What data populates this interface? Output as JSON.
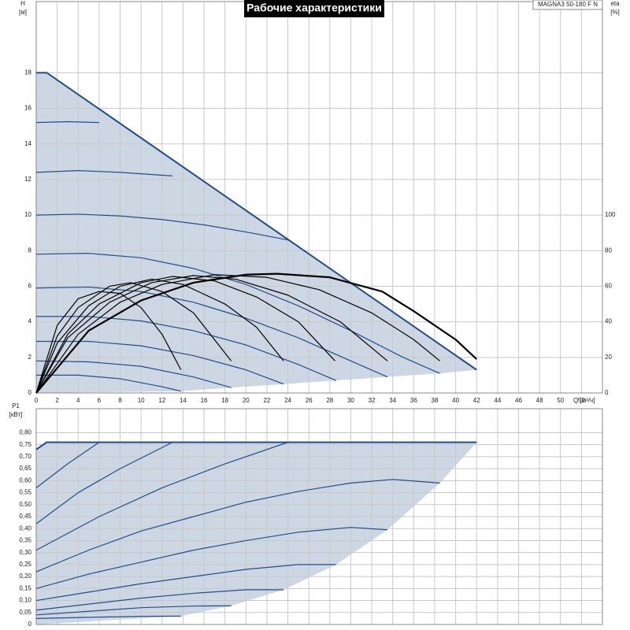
{
  "chart_data": [
    {
      "type": "line",
      "title": "Рабочие характеристики",
      "model": "MAGNA3 50-180 F N",
      "y_label": "H",
      "y_unit": "[м]",
      "y2_label": "eta",
      "y2_unit": "[%]",
      "x_label": "Q [м³/ч]",
      "xlim": [
        0,
        54
      ],
      "xticks": [
        0,
        2,
        4,
        6,
        8,
        10,
        12,
        14,
        16,
        18,
        20,
        22,
        24,
        26,
        28,
        30,
        32,
        34,
        36,
        38,
        40,
        42,
        44,
        46,
        48,
        50,
        52
      ],
      "ylim": [
        0,
        22
      ],
      "yticks": [
        0,
        2,
        4,
        6,
        8,
        10,
        12,
        14,
        16,
        18
      ],
      "y2lim": [
        0,
        220
      ],
      "y2ticks": [
        0,
        20,
        40,
        60,
        80,
        100
      ],
      "grid": true,
      "show_xtick_labels": true,
      "region": {
        "color": "#cdd7e3",
        "x": [
          0,
          13.8,
          18.6,
          23.6,
          28.6,
          33.5,
          38.5,
          42
        ],
        "values": [
          0,
          0.1,
          0.3,
          0.5,
          0.7,
          0.9,
          1.1,
          1.3
        ]
      },
      "series": [
        {
          "color": "#1f4e8c",
          "line_width": 2,
          "x": [
            0,
            1,
            42
          ],
          "values": [
            18,
            18,
            1.3
          ]
        },
        {
          "color": "#1f4e8c",
          "x": [
            0,
            3,
            6
          ],
          "values": [
            15.2,
            15.25,
            15.2
          ]
        },
        {
          "color": "#1f4e8c",
          "x": [
            0,
            4,
            8,
            13
          ],
          "values": [
            12.4,
            12.5,
            12.4,
            12.2
          ]
        },
        {
          "color": "#1f4e8c",
          "x": [
            0,
            4,
            8,
            12,
            16,
            20,
            24
          ],
          "values": [
            10,
            10.05,
            9.95,
            9.75,
            9.45,
            9.05,
            8.6
          ]
        },
        {
          "color": "#1f4e8c",
          "x": [
            0,
            5,
            10,
            15,
            20,
            25,
            30,
            35,
            38.5
          ],
          "values": [
            7.8,
            7.85,
            7.6,
            7.0,
            6.1,
            4.9,
            3.5,
            2.0,
            1.1
          ]
        },
        {
          "color": "#1f4e8c",
          "x": [
            0,
            5,
            10,
            15,
            20,
            25,
            30,
            33.5
          ],
          "values": [
            5.9,
            5.95,
            5.7,
            5.1,
            4.2,
            3.1,
            1.8,
            0.9
          ]
        },
        {
          "color": "#1f4e8c",
          "x": [
            0,
            5,
            10,
            15,
            20,
            25,
            28.6
          ],
          "values": [
            4.3,
            4.3,
            4.05,
            3.5,
            2.7,
            1.6,
            0.7
          ]
        },
        {
          "color": "#1f4e8c",
          "x": [
            0,
            5,
            10,
            15,
            20,
            23.6
          ],
          "values": [
            2.9,
            2.9,
            2.65,
            2.1,
            1.3,
            0.5
          ]
        },
        {
          "color": "#1f4e8c",
          "x": [
            0,
            5,
            10,
            15,
            18.6
          ],
          "values": [
            1.8,
            1.75,
            1.5,
            0.9,
            0.3
          ]
        },
        {
          "color": "#1f4e8c",
          "x": [
            0,
            4,
            8,
            12,
            13.8
          ],
          "values": [
            1.0,
            1.0,
            0.8,
            0.35,
            0.1
          ]
        },
        {
          "color": "#000000",
          "axis": "y2",
          "line_width": 2.2,
          "x": [
            0,
            5,
            10,
            15,
            20,
            23,
            28,
            33,
            36,
            40,
            42
          ],
          "values": [
            0,
            35,
            52,
            62,
            66.5,
            67,
            65,
            57,
            46,
            30,
            19
          ]
        },
        {
          "color": "#000000",
          "axis": "y2",
          "x": [
            0,
            4,
            8,
            12,
            17,
            22,
            27,
            32,
            36,
            38.5
          ],
          "values": [
            0,
            33,
            51,
            61,
            66.5,
            65,
            58,
            45,
            30,
            18
          ]
        },
        {
          "color": "#000000",
          "axis": "y2",
          "x": [
            0,
            3,
            7,
            11,
            15,
            19,
            24,
            29,
            33.5
          ],
          "values": [
            0,
            31,
            51,
            62,
            66,
            64,
            55,
            40,
            18
          ]
        },
        {
          "color": "#000000",
          "axis": "y2",
          "x": [
            0,
            3,
            6,
            10,
            13,
            17,
            21,
            25,
            28.5
          ],
          "values": [
            0,
            33,
            50,
            62,
            65.5,
            63,
            54,
            40,
            18
          ]
        },
        {
          "color": "#000000",
          "axis": "y2",
          "x": [
            0,
            2,
            5,
            8,
            11,
            14,
            18,
            21,
            23.6
          ],
          "values": [
            0,
            28,
            49,
            60,
            64,
            61,
            50,
            37,
            18
          ]
        },
        {
          "color": "#000000",
          "axis": "y2",
          "x": [
            0,
            2,
            4,
            7,
            9,
            12,
            15,
            18.6
          ],
          "values": [
            0,
            32,
            48,
            60,
            62,
            57,
            45,
            18
          ]
        },
        {
          "color": "#000000",
          "axis": "y2",
          "x": [
            0,
            2,
            4,
            6,
            8,
            10,
            12,
            13.8
          ],
          "values": [
            0,
            38,
            53,
            57,
            56,
            48,
            33,
            13
          ]
        }
      ]
    },
    {
      "type": "line",
      "y_label": "P1",
      "y_unit": "[кВт]",
      "xlim": [
        0,
        54
      ],
      "xticks": [
        0,
        2,
        4,
        6,
        8,
        10,
        12,
        14,
        16,
        18,
        20,
        22,
        24,
        26,
        28,
        30,
        32,
        34,
        36,
        38,
        40,
        42,
        44,
        46,
        48,
        50,
        52
      ],
      "ylim": [
        0,
        0.9
      ],
      "yticks": [
        0,
        {
          "value": 0.05,
          "label": "0,05"
        },
        {
          "value": 0.1,
          "label": "0,10"
        },
        {
          "value": 0.15,
          "label": "0,15"
        },
        {
          "value": 0.2,
          "label": "0,20"
        },
        {
          "value": 0.25,
          "label": "0,25"
        },
        {
          "value": 0.3,
          "label": "0,30"
        },
        {
          "value": 0.35,
          "label": "0,35"
        },
        {
          "value": 0.4,
          "label": "0,40"
        },
        {
          "value": 0.45,
          "label": "0,45"
        },
        {
          "value": 0.5,
          "label": "0,50"
        },
        {
          "value": 0.55,
          "label": "0,55"
        },
        {
          "value": 0.6,
          "label": "0,60"
        },
        {
          "value": 0.65,
          "label": "0,65"
        },
        {
          "value": 0.7,
          "label": "0,70"
        },
        {
          "value": 0.75,
          "label": "0,75"
        },
        {
          "value": 0.8,
          "label": "0,80"
        }
      ],
      "grid": true,
      "show_xtick_labels": false,
      "region": {
        "color": "#cdd7e3",
        "x": [
          0,
          13.8,
          18.6,
          23.6,
          28.6,
          33.5,
          38.5,
          42
        ],
        "values": [
          0,
          0.035,
          0.078,
          0.145,
          0.25,
          0.395,
          0.59,
          0.76
        ]
      },
      "series": [
        {
          "color": "#1f4e8c",
          "line_width": 2,
          "x": [
            0,
            1,
            42
          ],
          "values": [
            0.73,
            0.76,
            0.76
          ]
        },
        {
          "color": "#1f4e8c",
          "x": [
            0,
            3,
            6
          ],
          "values": [
            0.57,
            0.67,
            0.76
          ]
        },
        {
          "color": "#1f4e8c",
          "x": [
            0,
            4,
            8,
            13
          ],
          "values": [
            0.42,
            0.55,
            0.65,
            0.76
          ]
        },
        {
          "color": "#1f4e8c",
          "x": [
            0,
            6,
            12,
            18,
            24
          ],
          "values": [
            0.31,
            0.45,
            0.57,
            0.67,
            0.76
          ]
        },
        {
          "color": "#1f4e8c",
          "x": [
            0,
            5,
            10,
            15,
            20,
            25,
            30,
            34,
            38.5
          ],
          "values": [
            0.22,
            0.31,
            0.39,
            0.45,
            0.51,
            0.555,
            0.59,
            0.605,
            0.59
          ]
        },
        {
          "color": "#1f4e8c",
          "x": [
            0,
            5,
            10,
            15,
            20,
            25,
            30,
            33.5
          ],
          "values": [
            0.15,
            0.21,
            0.26,
            0.31,
            0.35,
            0.385,
            0.405,
            0.395
          ]
        },
        {
          "color": "#1f4e8c",
          "x": [
            0,
            5,
            10,
            15,
            20,
            25,
            28.6
          ],
          "values": [
            0.1,
            0.135,
            0.17,
            0.2,
            0.23,
            0.25,
            0.25
          ]
        },
        {
          "color": "#1f4e8c",
          "x": [
            0,
            5,
            10,
            15,
            20,
            23.6
          ],
          "values": [
            0.06,
            0.085,
            0.11,
            0.13,
            0.145,
            0.145
          ]
        },
        {
          "color": "#1f4e8c",
          "x": [
            0,
            5,
            10,
            15,
            18.6
          ],
          "values": [
            0.04,
            0.055,
            0.07,
            0.077,
            0.078
          ]
        },
        {
          "color": "#1f4e8c",
          "x": [
            0,
            5,
            10,
            13.8
          ],
          "values": [
            0.025,
            0.03,
            0.034,
            0.035
          ]
        }
      ]
    }
  ]
}
